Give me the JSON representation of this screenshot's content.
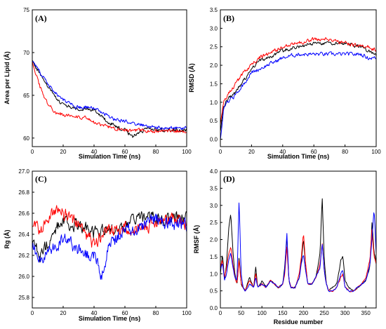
{
  "chart_data": [
    {
      "id": "A",
      "type": "line",
      "panel_label": "(A)",
      "xlabel": "Simulation Time (ns)",
      "ylabel": "Area per Lipid (Å)",
      "xlim": [
        0,
        100
      ],
      "ylim": [
        59,
        75
      ],
      "xticks": [
        0,
        20,
        40,
        60,
        80,
        100
      ],
      "yticks": [
        60,
        65,
        70,
        75
      ],
      "noise": [
        0.35,
        0.35,
        0.35
      ],
      "series": [
        {
          "color": "#000000",
          "x": [
            0,
            5,
            10,
            15,
            20,
            25,
            30,
            35,
            40,
            45,
            50,
            55,
            60,
            65,
            70,
            75,
            80,
            85,
            90,
            95,
            100
          ],
          "y": [
            69,
            67.5,
            66,
            64.8,
            63.9,
            63.6,
            63.3,
            63.3,
            63.4,
            62.5,
            61.8,
            61.2,
            60.9,
            60.2,
            60.8,
            61,
            61,
            60.9,
            61,
            60.9,
            61
          ]
        },
        {
          "color": "#ff0000",
          "x": [
            0,
            5,
            10,
            15,
            20,
            25,
            30,
            35,
            40,
            45,
            50,
            55,
            60,
            65,
            70,
            75,
            80,
            85,
            90,
            95,
            100
          ],
          "y": [
            69,
            66,
            64,
            63,
            62.7,
            62.7,
            62.5,
            62.3,
            61.8,
            61.5,
            61.3,
            61.1,
            61,
            60.9,
            60.9,
            60.8,
            60.8,
            60.8,
            60.8,
            60.8,
            60.8
          ]
        },
        {
          "color": "#0000ff",
          "x": [
            0,
            5,
            10,
            15,
            20,
            25,
            30,
            35,
            40,
            45,
            50,
            55,
            60,
            65,
            70,
            75,
            80,
            85,
            90,
            95,
            100
          ],
          "y": [
            69,
            67.7,
            66.5,
            65.2,
            64.5,
            64,
            63.6,
            63.6,
            63.5,
            63,
            62.4,
            62.1,
            61.9,
            61.7,
            61.6,
            61.4,
            61.2,
            61.2,
            61.2,
            61.1,
            61.2
          ]
        }
      ]
    },
    {
      "id": "B",
      "type": "line",
      "panel_label": "(B)",
      "xlabel": "Simulation Time (ns)",
      "ylabel": "RMSD (Å)",
      "xlim": [
        0,
        100
      ],
      "ylim": [
        -0.2,
        3.5
      ],
      "xticks": [
        0,
        20,
        40,
        60,
        80,
        100
      ],
      "yticks": [
        0.0,
        0.5,
        1.0,
        1.5,
        2.0,
        2.5,
        3.0,
        3.5
      ],
      "noise": [
        0.08,
        0.08,
        0.08
      ],
      "series": [
        {
          "color": "#000000",
          "x": [
            0,
            2,
            5,
            10,
            15,
            20,
            25,
            30,
            40,
            50,
            60,
            70,
            80,
            90,
            95,
            100
          ],
          "y": [
            0.2,
            0.9,
            1.1,
            1.3,
            1.6,
            1.9,
            2.1,
            2.2,
            2.4,
            2.5,
            2.6,
            2.6,
            2.6,
            2.5,
            2.4,
            2.3
          ]
        },
        {
          "color": "#ff0000",
          "x": [
            0,
            2,
            5,
            10,
            15,
            20,
            25,
            30,
            40,
            50,
            60,
            70,
            80,
            90,
            95,
            100
          ],
          "y": [
            0.4,
            1.0,
            1.2,
            1.5,
            1.8,
            2.0,
            2.2,
            2.3,
            2.5,
            2.6,
            2.7,
            2.7,
            2.6,
            2.5,
            2.5,
            2.4
          ]
        },
        {
          "color": "#0000ff",
          "x": [
            0,
            2,
            5,
            10,
            15,
            20,
            25,
            30,
            40,
            50,
            60,
            70,
            80,
            90,
            95,
            100
          ],
          "y": [
            0.0,
            0.8,
            1.0,
            1.2,
            1.5,
            1.8,
            1.9,
            2.0,
            2.2,
            2.3,
            2.3,
            2.3,
            2.3,
            2.3,
            2.2,
            2.2
          ]
        }
      ]
    },
    {
      "id": "C",
      "type": "line",
      "panel_label": "(C)",
      "xlabel": "Simulation Time (ns)",
      "ylabel": "Rg (Å)",
      "xlim": [
        0,
        100
      ],
      "ylim": [
        25.7,
        27.0
      ],
      "xticks": [
        0,
        20,
        40,
        60,
        80,
        100
      ],
      "yticks": [
        25.8,
        26.0,
        26.2,
        26.4,
        26.6,
        26.8,
        27.0
      ],
      "noise": [
        0.1,
        0.1,
        0.1
      ],
      "series": [
        {
          "color": "#000000",
          "x": [
            0,
            5,
            10,
            15,
            20,
            30,
            40,
            50,
            60,
            70,
            80,
            90,
            100
          ],
          "y": [
            26.3,
            26.2,
            26.3,
            26.45,
            26.5,
            26.5,
            26.4,
            26.45,
            26.5,
            26.55,
            26.55,
            26.55,
            26.55
          ]
        },
        {
          "color": "#ff0000",
          "x": [
            0,
            5,
            10,
            15,
            20,
            30,
            40,
            50,
            60,
            70,
            80,
            90,
            100
          ],
          "y": [
            26.5,
            26.45,
            26.5,
            26.65,
            26.6,
            26.5,
            26.3,
            26.45,
            26.45,
            26.45,
            26.5,
            26.55,
            26.5
          ]
        },
        {
          "color": "#0000ff",
          "x": [
            0,
            5,
            10,
            15,
            20,
            30,
            40,
            45,
            50,
            60,
            70,
            80,
            90,
            100
          ],
          "y": [
            26.3,
            26.15,
            26.25,
            26.3,
            26.35,
            26.25,
            26.2,
            26.0,
            26.3,
            26.45,
            26.45,
            26.55,
            26.5,
            26.5
          ]
        }
      ]
    },
    {
      "id": "D",
      "type": "line",
      "panel_label": "(D)",
      "xlabel": "Residue number",
      "ylabel": "RMSF (Å)",
      "xlim": [
        0,
        375
      ],
      "ylim": [
        0,
        4.0
      ],
      "xticks": [
        0,
        50,
        100,
        150,
        200,
        250,
        300,
        350
      ],
      "yticks": [
        0.0,
        0.5,
        1.0,
        1.5,
        2.0,
        2.5,
        3.0,
        3.5,
        4.0
      ],
      "noise": [
        0.04,
        0.04,
        0.04
      ],
      "series": [
        {
          "color": "#000000",
          "x": [
            0,
            5,
            10,
            15,
            20,
            25,
            30,
            35,
            40,
            45,
            50,
            55,
            60,
            70,
            80,
            85,
            90,
            100,
            110,
            120,
            130,
            140,
            150,
            155,
            160,
            165,
            170,
            180,
            190,
            195,
            200,
            205,
            210,
            220,
            230,
            240,
            245,
            250,
            255,
            260,
            270,
            280,
            290,
            295,
            300,
            310,
            320,
            330,
            340,
            350,
            360,
            365,
            370,
            375
          ],
          "y": [
            1.0,
            1.6,
            0.8,
            1.3,
            2.3,
            2.75,
            1.7,
            1.0,
            0.7,
            1.5,
            0.7,
            0.6,
            0.5,
            0.9,
            0.6,
            1.2,
            0.6,
            0.8,
            0.6,
            0.8,
            0.7,
            0.6,
            0.7,
            1.2,
            2.1,
            0.8,
            0.6,
            0.6,
            0.9,
            1.4,
            2.0,
            1.3,
            0.7,
            0.7,
            0.9,
            1.6,
            3.25,
            1.4,
            0.7,
            0.5,
            0.6,
            0.7,
            1.4,
            1.5,
            0.8,
            0.6,
            0.5,
            0.6,
            0.7,
            0.8,
            1.2,
            2.5,
            1.6,
            1.4
          ]
        },
        {
          "color": "#ff0000",
          "x": [
            0,
            5,
            10,
            15,
            20,
            25,
            30,
            35,
            40,
            45,
            50,
            55,
            60,
            70,
            80,
            85,
            90,
            100,
            110,
            120,
            130,
            140,
            150,
            155,
            160,
            165,
            170,
            180,
            190,
            195,
            200,
            205,
            210,
            220,
            230,
            240,
            245,
            250,
            255,
            260,
            270,
            280,
            290,
            295,
            300,
            310,
            320,
            330,
            340,
            350,
            360,
            365,
            370,
            375
          ],
          "y": [
            1.2,
            1.4,
            0.9,
            1.2,
            1.6,
            1.8,
            1.3,
            0.9,
            0.7,
            1.4,
            0.7,
            0.6,
            0.5,
            0.8,
            0.6,
            1.0,
            0.6,
            0.7,
            0.6,
            0.8,
            0.7,
            0.6,
            0.7,
            1.0,
            1.8,
            0.8,
            0.6,
            0.6,
            1.0,
            1.5,
            2.2,
            1.3,
            0.7,
            0.7,
            0.9,
            1.3,
            1.9,
            1.1,
            0.7,
            0.5,
            0.5,
            0.6,
            0.9,
            1.0,
            0.6,
            0.5,
            0.5,
            0.6,
            0.7,
            0.9,
            1.4,
            2.3,
            1.5,
            1.3
          ]
        },
        {
          "color": "#0000ff",
          "x": [
            0,
            5,
            10,
            15,
            20,
            25,
            30,
            35,
            40,
            45,
            50,
            55,
            60,
            70,
            80,
            85,
            90,
            100,
            110,
            120,
            130,
            140,
            150,
            155,
            160,
            165,
            170,
            180,
            190,
            195,
            200,
            205,
            210,
            220,
            230,
            240,
            245,
            250,
            255,
            260,
            270,
            280,
            290,
            295,
            300,
            310,
            320,
            330,
            340,
            350,
            360,
            365,
            370,
            375
          ],
          "y": [
            1.1,
            1.3,
            0.8,
            1.0,
            1.4,
            1.6,
            1.2,
            0.9,
            0.8,
            3.2,
            1.0,
            0.6,
            0.5,
            0.7,
            0.6,
            0.9,
            0.6,
            0.7,
            0.6,
            0.8,
            0.7,
            0.6,
            0.7,
            1.1,
            2.2,
            0.8,
            0.6,
            0.6,
            0.9,
            1.3,
            1.6,
            1.1,
            0.7,
            0.7,
            0.9,
            1.2,
            1.9,
            1.1,
            0.7,
            0.5,
            0.5,
            0.6,
            1.0,
            1.1,
            0.6,
            0.5,
            0.5,
            0.6,
            0.7,
            0.8,
            1.3,
            2.0,
            2.9,
            1.6
          ]
        }
      ]
    }
  ]
}
